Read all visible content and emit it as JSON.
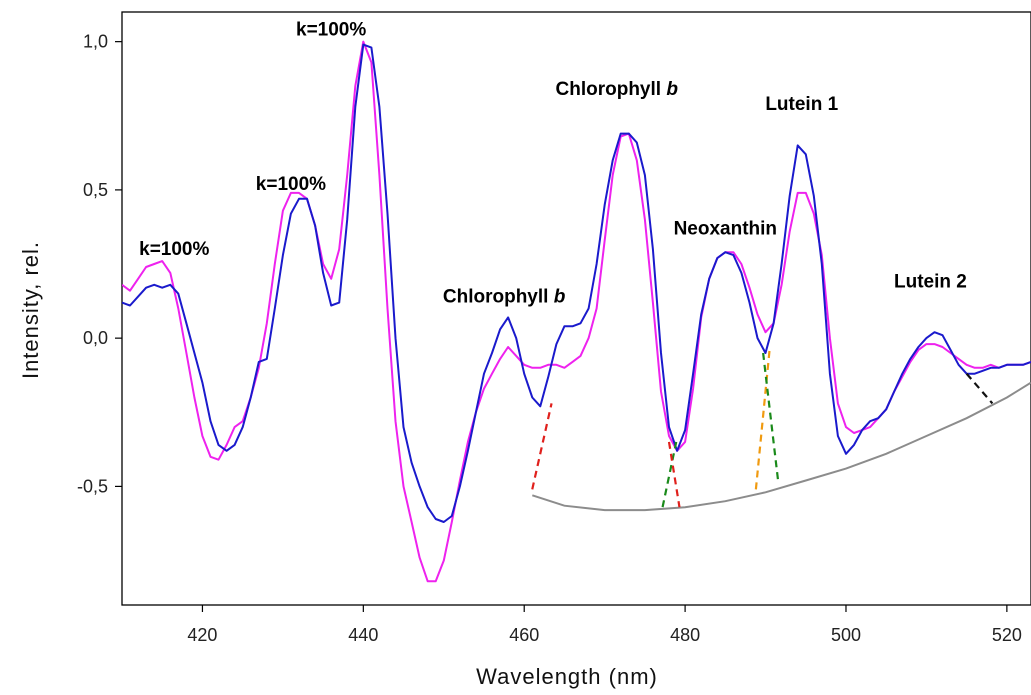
{
  "colors": {
    "magenta_series": "#ee22ee",
    "blue_series": "#1a1acc",
    "baseline": "#8c8c8c",
    "red_dash": "#e0201c",
    "green_dash": "#1a8a1a",
    "orange_dash": "#f09a10",
    "black_dash": "#111111"
  },
  "chart_data": {
    "type": "line",
    "title": "",
    "xlabel": "Wavelength (nm)",
    "ylabel": "Intensity, rel.",
    "xlim": [
      410,
      523
    ],
    "ylim": [
      -0.9,
      1.1
    ],
    "grid": false,
    "x_ticks": [
      {
        "value": 420,
        "label": "420"
      },
      {
        "value": 440,
        "label": "440"
      },
      {
        "value": 460,
        "label": "460"
      },
      {
        "value": 480,
        "label": "480"
      },
      {
        "value": 500,
        "label": "500"
      },
      {
        "value": 520,
        "label": "520"
      }
    ],
    "y_ticks": [
      {
        "value": 1.0,
        "label": "1,0"
      },
      {
        "value": 0.5,
        "label": "0,5"
      },
      {
        "value": 0.0,
        "label": "0,0"
      },
      {
        "value": -0.5,
        "label": "-0,5"
      }
    ],
    "series": [
      {
        "key": "magenta",
        "color": "#ee22ee",
        "x": [
          410,
          411,
          412,
          413,
          414,
          415,
          416,
          417,
          418,
          419,
          420,
          421,
          422,
          423,
          424,
          425,
          426,
          427,
          428,
          429,
          430,
          431,
          432,
          433,
          434,
          435,
          436,
          437,
          438,
          439,
          440,
          441,
          442,
          443,
          444,
          445,
          446,
          447,
          448,
          449,
          450,
          451,
          452,
          453,
          454,
          455,
          456,
          457,
          458,
          459,
          460,
          461,
          462,
          463,
          464,
          465,
          466,
          467,
          468,
          469,
          470,
          471,
          472,
          473,
          474,
          475,
          476,
          477,
          478,
          479,
          480,
          481,
          482,
          483,
          484,
          485,
          486,
          487,
          488,
          489,
          490,
          491,
          492,
          493,
          494,
          495,
          496,
          497,
          498,
          499,
          500,
          501,
          502,
          503,
          504,
          505,
          506,
          507,
          508,
          509,
          510,
          511,
          512,
          513,
          514,
          515,
          516,
          517,
          518,
          519,
          520,
          521,
          522,
          523
        ],
        "y": [
          0.18,
          0.16,
          0.2,
          0.24,
          0.25,
          0.26,
          0.22,
          0.1,
          -0.05,
          -0.2,
          -0.33,
          -0.4,
          -0.41,
          -0.36,
          -0.3,
          -0.28,
          -0.2,
          -0.1,
          0.05,
          0.25,
          0.43,
          0.49,
          0.49,
          0.47,
          0.38,
          0.25,
          0.2,
          0.3,
          0.55,
          0.85,
          1.0,
          0.93,
          0.55,
          0.1,
          -0.28,
          -0.5,
          -0.62,
          -0.74,
          -0.82,
          -0.82,
          -0.75,
          -0.62,
          -0.48,
          -0.35,
          -0.25,
          -0.17,
          -0.12,
          -0.07,
          -0.03,
          -0.06,
          -0.09,
          -0.1,
          -0.1,
          -0.09,
          -0.09,
          -0.1,
          -0.08,
          -0.06,
          0.0,
          0.1,
          0.33,
          0.55,
          0.68,
          0.69,
          0.6,
          0.4,
          0.12,
          -0.18,
          -0.33,
          -0.38,
          -0.35,
          -0.17,
          0.07,
          0.2,
          0.27,
          0.29,
          0.29,
          0.25,
          0.17,
          0.08,
          0.02,
          0.05,
          0.18,
          0.36,
          0.49,
          0.49,
          0.42,
          0.28,
          0.0,
          -0.22,
          -0.3,
          -0.32,
          -0.31,
          -0.3,
          -0.27,
          -0.24,
          -0.18,
          -0.13,
          -0.08,
          -0.04,
          -0.02,
          -0.02,
          -0.03,
          -0.05,
          -0.07,
          -0.09,
          -0.1,
          -0.1,
          -0.09,
          -0.1,
          -0.09,
          -0.09,
          -0.09,
          -0.08
        ]
      },
      {
        "key": "blue",
        "color": "#1a1acc",
        "x": [
          410,
          411,
          412,
          413,
          414,
          415,
          416,
          417,
          418,
          419,
          420,
          421,
          422,
          423,
          424,
          425,
          426,
          427,
          428,
          429,
          430,
          431,
          432,
          433,
          434,
          435,
          436,
          437,
          438,
          439,
          440,
          441,
          442,
          443,
          444,
          445,
          446,
          447,
          448,
          449,
          450,
          451,
          452,
          453,
          454,
          455,
          456,
          457,
          458,
          459,
          460,
          461,
          462,
          463,
          464,
          465,
          466,
          467,
          468,
          469,
          470,
          471,
          472,
          473,
          474,
          475,
          476,
          477,
          478,
          479,
          480,
          481,
          482,
          483,
          484,
          485,
          486,
          487,
          488,
          489,
          490,
          491,
          492,
          493,
          494,
          495,
          496,
          497,
          498,
          499,
          500,
          501,
          502,
          503,
          504,
          505,
          506,
          507,
          508,
          509,
          510,
          511,
          512,
          513,
          514,
          515,
          516,
          517,
          518,
          519,
          520,
          521,
          522,
          523
        ],
        "y": [
          0.12,
          0.11,
          0.14,
          0.17,
          0.18,
          0.17,
          0.18,
          0.15,
          0.05,
          -0.05,
          -0.15,
          -0.28,
          -0.36,
          -0.38,
          -0.36,
          -0.3,
          -0.2,
          -0.08,
          -0.07,
          0.1,
          0.28,
          0.42,
          0.47,
          0.47,
          0.38,
          0.22,
          0.11,
          0.12,
          0.4,
          0.78,
          0.99,
          0.98,
          0.78,
          0.42,
          0.0,
          -0.3,
          -0.42,
          -0.5,
          -0.57,
          -0.61,
          -0.62,
          -0.6,
          -0.5,
          -0.38,
          -0.25,
          -0.12,
          -0.05,
          0.03,
          0.07,
          0.0,
          -0.12,
          -0.2,
          -0.23,
          -0.13,
          -0.02,
          0.04,
          0.04,
          0.05,
          0.1,
          0.25,
          0.45,
          0.6,
          0.69,
          0.69,
          0.66,
          0.55,
          0.3,
          -0.05,
          -0.3,
          -0.38,
          -0.31,
          -0.12,
          0.08,
          0.2,
          0.27,
          0.29,
          0.28,
          0.22,
          0.12,
          0.0,
          -0.05,
          0.05,
          0.25,
          0.48,
          0.65,
          0.62,
          0.48,
          0.25,
          -0.12,
          -0.33,
          -0.39,
          -0.36,
          -0.31,
          -0.28,
          -0.27,
          -0.24,
          -0.18,
          -0.12,
          -0.07,
          -0.03,
          0.0,
          0.02,
          0.01,
          -0.04,
          -0.09,
          -0.12,
          -0.12,
          -0.11,
          -0.1,
          -0.1,
          -0.09,
          -0.09,
          -0.09,
          -0.08
        ]
      }
    ],
    "baseline": {
      "color": "#8c8c8c",
      "x": [
        461,
        465,
        470,
        475,
        480,
        485,
        490,
        495,
        500,
        505,
        510,
        515,
        520,
        523
      ],
      "y": [
        -0.53,
        -0.565,
        -0.58,
        -0.58,
        -0.57,
        -0.55,
        -0.52,
        -0.48,
        -0.44,
        -0.39,
        -0.33,
        -0.27,
        -0.2,
        -0.15
      ]
    },
    "dashed_lines": [
      {
        "color": "#e0201c",
        "x1": 461.0,
        "y1": -0.51,
        "x2": 463.4,
        "y2": -0.22
      },
      {
        "color": "#1a8a1a",
        "x1": 477.2,
        "y1": -0.57,
        "x2": 478.9,
        "y2": -0.35
      },
      {
        "color": "#e0201c",
        "x1": 478.0,
        "y1": -0.35,
        "x2": 479.3,
        "y2": -0.57
      },
      {
        "color": "#f09a10",
        "x1": 488.8,
        "y1": -0.51,
        "x2": 490.5,
        "y2": -0.04
      },
      {
        "color": "#1a8a1a",
        "x1": 489.7,
        "y1": -0.05,
        "x2": 491.6,
        "y2": -0.49
      },
      {
        "color": "#111111",
        "x1": 515.0,
        "y1": -0.12,
        "x2": 518.2,
        "y2": -0.22
      }
    ],
    "annotations": [
      {
        "key": "k1",
        "text": "k=100%",
        "x": 416.5,
        "y": 0.28
      },
      {
        "key": "k2",
        "text": "k=100%",
        "x": 431.0,
        "y": 0.5
      },
      {
        "key": "k3",
        "text": "k=100%",
        "x": 436.0,
        "y": 1.02
      },
      {
        "key": "chl1",
        "text": "Chlorophyll",
        "italic_suffix": "b",
        "x": 457.5,
        "y": 0.12
      },
      {
        "key": "chl2",
        "text": "Chlorophyll",
        "italic_suffix": "b",
        "x": 471.5,
        "y": 0.82
      },
      {
        "key": "neo",
        "text": "Neoxanthin",
        "x": 485.0,
        "y": 0.35
      },
      {
        "key": "lut1",
        "text": "Lutein 1",
        "x": 494.5,
        "y": 0.77
      },
      {
        "key": "lut2",
        "text": "Lutein 2",
        "x": 510.5,
        "y": 0.17
      }
    ]
  }
}
